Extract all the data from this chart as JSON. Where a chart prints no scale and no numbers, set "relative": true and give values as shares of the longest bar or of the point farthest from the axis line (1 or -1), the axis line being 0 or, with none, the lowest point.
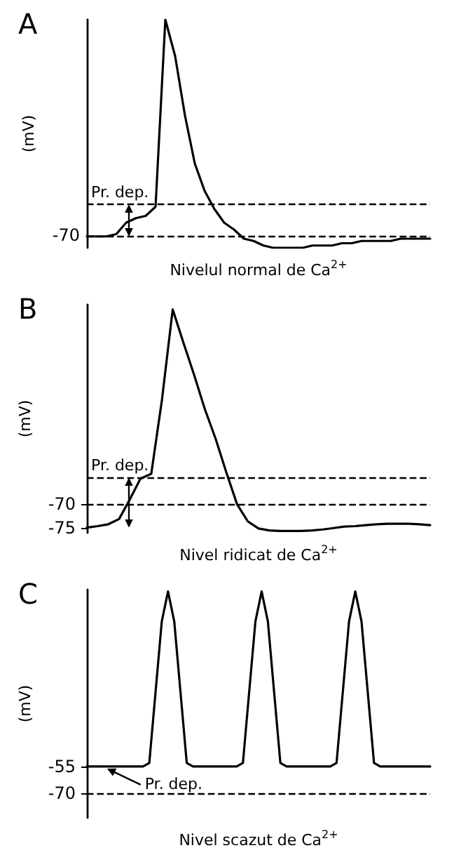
{
  "chart_data": [
    {
      "type": "line",
      "title": "A",
      "ylabel": "(mV)",
      "xlabel": "Nivelul normal de Ca$^{2+}$",
      "relative": true,
      "tick_labels": false,
      "color": "#000000",
      "line_style": "solid",
      "categories": [
        null,
        null,
        null,
        null,
        null,
        null,
        null,
        null,
        null,
        null,
        null,
        null,
        null,
        null,
        null,
        null,
        null,
        null,
        null,
        null,
        null,
        null,
        null,
        null,
        null,
        null,
        null,
        null,
        null,
        null,
        null,
        null,
        null,
        null,
        null,
        null
      ],
      "values": [
        0.05,
        0.05,
        0.05,
        0.06,
        0.11,
        0.13,
        0.14,
        0.18,
        1,
        0.84,
        0.58,
        0.37,
        0.25,
        0.17,
        0.11,
        0.08,
        0.04,
        0.03,
        0.01,
        0,
        0,
        0,
        0,
        0.01,
        0.01,
        0.01,
        0.02,
        0.02,
        0.03,
        0.03,
        0.03,
        0.03,
        0.04,
        0.04,
        0.04,
        0.04
      ],
      "ref_lines": [
        {
          "axis": "y",
          "value": 0.05,
          "line_style": "dashed"
        },
        {
          "axis": "y",
          "value": 0.19,
          "label": "Pr. dep.",
          "line_style": "dashed"
        }
      ],
      "annotations": [
        "-70"
      ]
    },
    {
      "type": "line",
      "title": "B",
      "ylabel": "(mV)",
      "xlabel": "Nivel ridicat de Ca$^{2+}$",
      "tick_labels": "y",
      "color": "#000000",
      "line_style": "solid",
      "ylim": [
        -76,
        -28
      ],
      "yticks": [
        -75,
        -70
      ],
      "categories": [
        null,
        null,
        null,
        null,
        null,
        null,
        null,
        null,
        null,
        null,
        null,
        null,
        null,
        null,
        null,
        null,
        null,
        null,
        null,
        null,
        null,
        null,
        null,
        null,
        null,
        null,
        null,
        null,
        null,
        null,
        null,
        null,
        null
      ],
      "values": [
        -74.9,
        -74.6,
        -74.2,
        -73.1,
        -69,
        -64.6,
        -63.6,
        -48,
        -29,
        -36,
        -42.8,
        -50,
        -56.2,
        -63.3,
        -70,
        -73.6,
        -75.1,
        -75.5,
        -75.6,
        -75.6,
        -75.6,
        -75.5,
        -75.3,
        -75,
        -74.7,
        -74.6,
        -74.4,
        -74.2,
        -74.1,
        -74.1,
        -74.1,
        -74.2,
        -74.4
      ],
      "ref_lines": [
        {
          "axis": "y",
          "value": -70,
          "line_style": "dashed"
        },
        {
          "axis": "y",
          "value": -64.4,
          "label": "Pr. dep.",
          "line_style": "dashed"
        }
      ]
    },
    {
      "type": "line",
      "title": "C",
      "ylabel": "(mV)",
      "xlabel": "Nivel scazut de Ca$^{2+}$",
      "tick_labels": "y",
      "color": "#000000",
      "line_style": "solid",
      "ylim": [
        -84,
        45
      ],
      "yticks": [
        -70,
        -55
      ],
      "categories": [
        null,
        null,
        null,
        null,
        null,
        null,
        null,
        null,
        null,
        null,
        null,
        null,
        null,
        null,
        null,
        null,
        null,
        null,
        null,
        null,
        null,
        null,
        null,
        null,
        null,
        null,
        null,
        null,
        null,
        null,
        null,
        null,
        null,
        null,
        null,
        null,
        null,
        null,
        null,
        null,
        null,
        null,
        null,
        null,
        null,
        null,
        null,
        null,
        null,
        null,
        null,
        null,
        null,
        null,
        null,
        null
      ],
      "values": [
        -55,
        -55,
        -55,
        -55,
        -55,
        -55,
        -55,
        -55,
        -55,
        -55,
        -53,
        -13,
        27,
        44,
        27,
        -13,
        -53,
        -55,
        -55,
        -55,
        -55,
        -55,
        -55,
        -55,
        -55,
        -53,
        -13,
        27,
        44,
        27,
        -13,
        -53,
        -55,
        -55,
        -55,
        -55,
        -55,
        -55,
        -55,
        -55,
        -53,
        -13,
        27,
        44,
        27,
        -13,
        -53,
        -55,
        -55,
        -55,
        -55,
        -55,
        -55,
        -55,
        -55,
        -55
      ],
      "ref_lines": [
        {
          "axis": "y",
          "value": -70,
          "line_style": "dashed"
        }
      ],
      "annotations": [
        "Pr. dep."
      ]
    }
  ]
}
